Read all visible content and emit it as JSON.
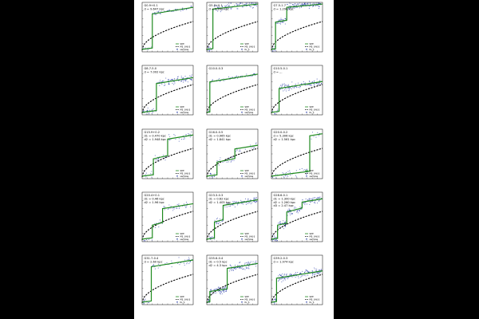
{
  "figure": {
    "legend": {
      "a": [
        "SDE",
        "Ṁ$_{fit}$",
        "Nₛ_p"
      ],
      "b": [
        "SDE",
        "Ṁ$_{fit}$",
        "samples"
      ]
    }
  },
  "chart_data": [
    {
      "type": "scatter",
      "label_lines": [
        "G0.9+0.1",
        "d = 9.647 kpc"
      ],
      "legend": "b",
      "steps": [
        {
          "x": 2.0,
          "to": 2.3
        }
      ],
      "dist": "tight"
    },
    {
      "type": "scatter",
      "label_lines": [
        "G5.9+0.1",
        "d = 5.200 kpc"
      ],
      "legend": "a",
      "steps": [
        {
          "x": 1.2,
          "to": 2.6
        }
      ],
      "dist": "spread"
    },
    {
      "type": "scatter",
      "label_lines": [
        "G7.5-1.7",
        "d = 1.294 kpc"
      ],
      "legend": "a",
      "steps": [
        {
          "x": 0.8,
          "to": 1.8
        },
        {
          "x": 3.0,
          "to": 2.7
        }
      ],
      "dist": "dense"
    },
    {
      "type": "scatter",
      "label_lines": [
        "G8.7-5.0",
        "d = 7.092 kpc"
      ],
      "legend": "b",
      "steps": [
        {
          "x": 2.8,
          "to": 1.9
        }
      ],
      "dist": "spread"
    },
    {
      "type": "scatter",
      "label_lines": [
        "G10.0-0.3"
      ],
      "legend": "b",
      "steps": [
        {
          "x": 0.6,
          "to": 2.0
        }
      ],
      "dist": "tight"
    },
    {
      "type": "scatter",
      "label_lines": [
        "G10.5-0.1",
        "d = ..."
      ],
      "legend": "a",
      "steps": [
        {
          "x": 1.5,
          "to": 1.6
        }
      ],
      "dist": "spread"
    },
    {
      "type": "scatter",
      "label_lines": [
        "G15.9+0.2",
        "d1 = 0.470 kpc",
        "d2 = 1.948 kpc"
      ],
      "legend": "b",
      "steps": [
        {
          "x": 2.2,
          "to": 1.2
        },
        {
          "x": 5.0,
          "to": 2.4
        }
      ],
      "dist": "sparse"
    },
    {
      "type": "scatter",
      "label_lines": [
        "G16.0-0.5",
        "d1 = 0.965 kpc",
        "d2 = 1.841 kpc"
      ],
      "legend": "b",
      "steps": [
        {
          "x": 2.0,
          "to": 1.0
        },
        {
          "x": 5.5,
          "to": 1.8
        }
      ],
      "dist": "sparse"
    },
    {
      "type": "scatter",
      "label_lines": [
        "G20.0-0.2",
        "d = 5.306 kpc",
        "d2 = 1.561 kpc"
      ],
      "legend": "b",
      "steps": [
        {
          "x": 7.5,
          "to": 2.6
        }
      ],
      "dist": "sparse"
    },
    {
      "type": "scatter",
      "label_lines": [
        "G20.4+0.1",
        "d1 = 0.46 kpc",
        "d2 = 1.96 kpc"
      ],
      "legend": "b",
      "steps": [
        {
          "x": 2.0,
          "to": 1.0
        },
        {
          "x": 4.0,
          "to": 2.0
        }
      ],
      "dist": "sparse"
    },
    {
      "type": "scatter",
      "label_lines": [
        "G23.3-0.3",
        "d1 = 0.62 kpc",
        "d2 = 1.405 kpc"
      ],
      "legend": "b",
      "steps": [
        {
          "x": 1.5,
          "to": 1.2
        },
        {
          "x": 3.2,
          "to": 2.2
        }
      ],
      "dist": "spread"
    },
    {
      "type": "scatter",
      "label_lines": [
        "G28.6-0.1",
        "d1 = 1.300 kpc",
        "d2 = 1.260 kpc",
        "d3 = 2.47 kpc"
      ],
      "legend": "b",
      "steps": [
        {
          "x": 1.2,
          "to": 1.0
        },
        {
          "x": 3.0,
          "to": 1.8
        },
        {
          "x": 6.0,
          "to": 2.4
        }
      ],
      "dist": "dense"
    },
    {
      "type": "scatter",
      "label_lines": [
        "G31.7-0.4",
        "d = 2.60 kpc"
      ],
      "legend": "a",
      "steps": [
        {
          "x": 1.8,
          "to": 2.3
        }
      ],
      "dist": "sparse"
    },
    {
      "type": "scatter",
      "label_lines": [
        "G35.6-0.4",
        "d1 = 0.5 kpc",
        "d2 = 4.3 kpc"
      ],
      "legend": "a",
      "steps": [
        {
          "x": 0.6,
          "to": 0.8
        },
        {
          "x": 4.0,
          "to": 2.2
        }
      ],
      "dist": "dense"
    },
    {
      "type": "scatter",
      "label_lines": [
        "G39.2-0.3",
        "d = 1.974 kpc"
      ],
      "legend": "a",
      "steps": [
        {
          "x": 1.0,
          "to": 1.6
        }
      ],
      "dist": "dense"
    }
  ]
}
